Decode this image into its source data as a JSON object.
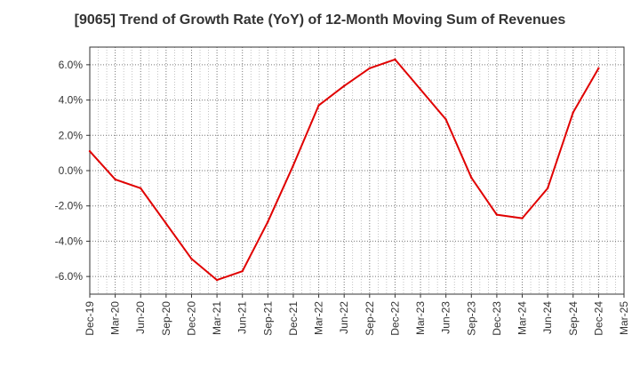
{
  "chart_data": {
    "type": "line",
    "title": "[9065]  Trend of Growth Rate (YoY) of 12-Month Moving Sum of Revenues",
    "xlabel": "",
    "ylabel": "",
    "ylim": [
      -7.0,
      7.0
    ],
    "y_ticks": [
      "6.0%",
      "4.0%",
      "2.0%",
      "0.0%",
      "-2.0%",
      "-4.0%",
      "-6.0%"
    ],
    "x_ticks": [
      "Dec-19",
      "Mar-20",
      "Jun-20",
      "Sep-20",
      "Dec-20",
      "Mar-21",
      "Jun-21",
      "Sep-21",
      "Dec-21",
      "Mar-22",
      "Jun-22",
      "Sep-22",
      "Dec-22",
      "Mar-23",
      "Jun-23",
      "Sep-23",
      "Dec-23",
      "Mar-24",
      "Jun-24",
      "Sep-24",
      "Dec-24",
      "Mar-25"
    ],
    "grid": true,
    "series": [
      {
        "color": "#e00000",
        "x": [
          "Dec-19",
          "Mar-20",
          "Jun-20",
          "Sep-20",
          "Dec-20",
          "Mar-21",
          "Jun-21",
          "Sep-21",
          "Dec-21",
          "Mar-22",
          "Jun-22",
          "Sep-22",
          "Dec-22",
          "Mar-23",
          "Jun-23",
          "Sep-23",
          "Dec-23",
          "Mar-24",
          "Jun-24",
          "Sep-24",
          "Dec-24"
        ],
        "values": [
          1.1,
          -0.5,
          -1.0,
          -3.0,
          -5.0,
          -6.2,
          -5.7,
          -2.9,
          0.3,
          3.7,
          4.8,
          5.8,
          6.3,
          4.6,
          2.9,
          -0.4,
          -2.5,
          -2.7,
          -1.0,
          3.3,
          5.8
        ]
      }
    ]
  }
}
